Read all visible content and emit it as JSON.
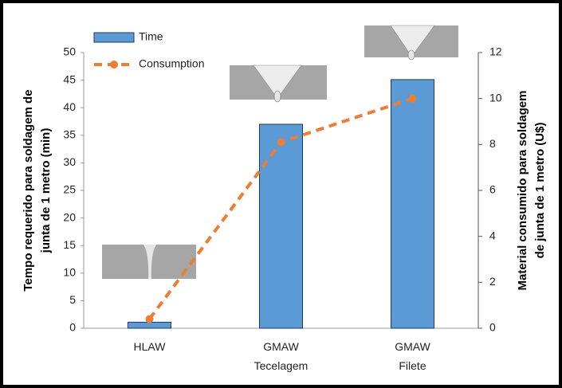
{
  "chart_data": {
    "type": "bar-line",
    "categories": [
      "HLAW",
      "GMAW Tecelagem",
      "GMAW Filete"
    ],
    "series": [
      {
        "name": "Time",
        "type": "bar",
        "color": "#5b9bd5",
        "values": [
          1.1,
          37,
          45.1
        ]
      },
      {
        "name": "Consumption",
        "type": "line",
        "axis": "y2",
        "color": "#ed7d31",
        "values": [
          0.4,
          8.1,
          10
        ]
      }
    ],
    "y_label": [
      "Tempo requerido para soldagem de",
      "junta de 1 metro (min)"
    ],
    "y2_label": [
      "Material consumido para soldagem",
      "de junta de 1 metro (U$)"
    ],
    "ylim": [
      0,
      50
    ],
    "yticks": [
      0,
      5,
      10,
      15,
      20,
      25,
      30,
      35,
      40,
      45,
      50
    ],
    "y2lim": [
      0,
      12
    ],
    "y2ticks": [
      0,
      2,
      4,
      6,
      8,
      10,
      12
    ],
    "grid": false,
    "legend": "upper left"
  }
}
